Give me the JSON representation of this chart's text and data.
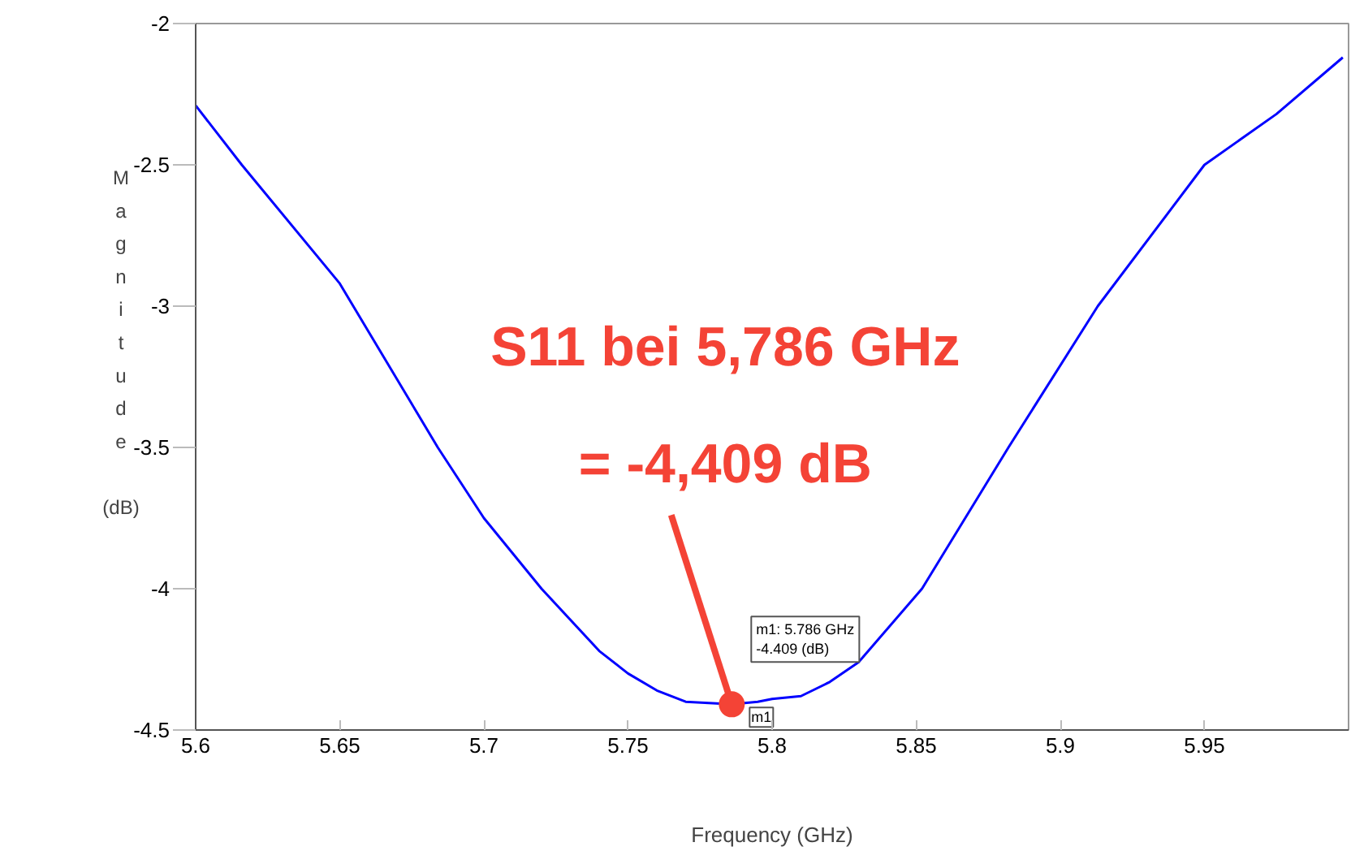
{
  "chart_data": {
    "type": "line",
    "xlabel": "Frequency (GHz)",
    "ylabel": "Magnitude (dB)",
    "x": [
      5.6,
      5.616,
      5.65,
      5.684,
      5.7,
      5.72,
      5.74,
      5.75,
      5.76,
      5.77,
      5.786,
      5.795,
      5.8,
      5.81,
      5.82,
      5.83,
      5.852,
      5.882,
      5.913,
      5.95,
      5.975,
      5.998
    ],
    "series": [
      {
        "color": "#0000ff",
        "values": [
          -2.29,
          -2.5,
          -2.92,
          -3.5,
          -3.75,
          -4.0,
          -4.22,
          -4.3,
          -4.36,
          -4.4,
          -4.409,
          -4.4,
          -4.39,
          -4.38,
          -4.33,
          -4.26,
          -4.0,
          -3.5,
          -3.0,
          -2.5,
          -2.32,
          -2.12
        ]
      }
    ],
    "xlim": [
      5.6,
      6.0
    ],
    "ylim": [
      -4.5,
      -2
    ],
    "xticks": [
      5.6,
      5.65,
      5.7,
      5.75,
      5.8,
      5.85,
      5.9,
      5.95
    ],
    "yticks": [
      -4.5,
      -4,
      -3.5,
      -3,
      -2.5,
      -2
    ],
    "grid": false,
    "marker": "none",
    "line_style": "solid",
    "annotations": [
      {
        "text": "S11 bei 5,786 GHz\n= -4,409 dB",
        "x": 5.786,
        "y": -4.409
      },
      "m1: 5.786 GHz\n-4.409  (dB)",
      "m1"
    ]
  }
}
